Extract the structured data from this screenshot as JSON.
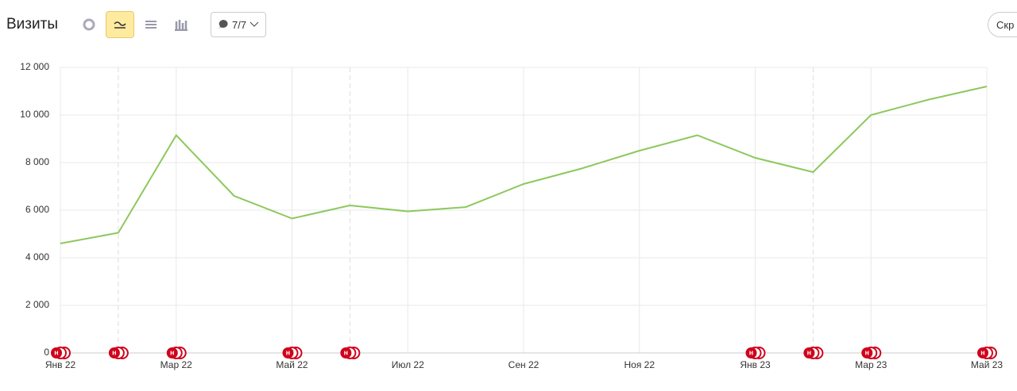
{
  "header": {
    "title": "Визиты",
    "filter": "7/7",
    "hide_button": "Скр"
  },
  "chart_data": {
    "type": "line",
    "categories": [
      "Янв 22",
      null,
      "Мар 22",
      null,
      "Май 22",
      null,
      "Июл 22",
      null,
      "Сен 22",
      null,
      "Ноя 22",
      null,
      "Янв 23",
      null,
      "Мар 23",
      null,
      "Май 23"
    ],
    "series": [
      {
        "color": "#8dc85d",
        "values": [
          4600,
          5050,
          9150,
          6600,
          5650,
          6200,
          5950,
          6130,
          7100,
          7750,
          8500,
          9150,
          8200,
          7600,
          10000,
          10650,
          11200
        ]
      }
    ],
    "ylim": [
      0,
      12000
    ],
    "yticks": [
      0,
      {
        "value": 2000,
        "label": "2 000"
      },
      {
        "value": 4000,
        "label": "4 000"
      },
      {
        "value": 6000,
        "label": "6 000"
      },
      {
        "value": 8000,
        "label": "8 000"
      },
      {
        "value": 10000,
        "label": "10 000"
      },
      {
        "value": 12000,
        "label": "12 000"
      }
    ],
    "grid": true,
    "notes": {
      "label": "н",
      "color": "#d0021b",
      "at": [
        0,
        1,
        2,
        4,
        5,
        12,
        13,
        14,
        16
      ],
      "dashed_at": [
        1,
        5,
        13
      ]
    }
  }
}
